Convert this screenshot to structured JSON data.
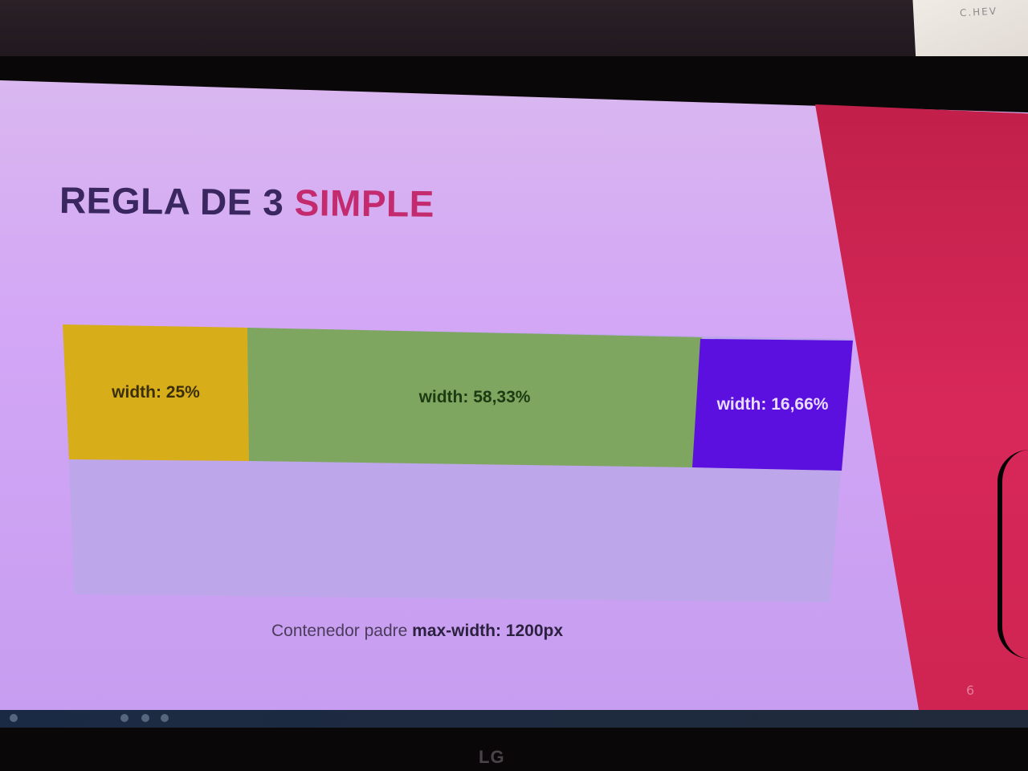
{
  "slide": {
    "title_main": "REGLA DE 3 ",
    "title_accent": "SIMPLE",
    "columns": [
      {
        "label": "width: 25%",
        "percent": 25,
        "color": "#d8ad1a"
      },
      {
        "label": "width: 58,33%",
        "percent": 58.33,
        "color": "#7ea660"
      },
      {
        "label": "width: 16,66%",
        "percent": 16.66,
        "color": "#5b10e0"
      }
    ],
    "caption_prefix": "Contenedor padre ",
    "caption_bold": "max-width: 1200px",
    "page_number": "6"
  },
  "monitor": {
    "brand": "LG"
  },
  "note": {
    "text": "C.HEV"
  },
  "colors": {
    "title_main": "#3a2760",
    "title_accent": "#c42a6e",
    "slide_bg": "#d3a6f6",
    "container_bg": "#bda7ea",
    "red_panel": "#d8285a"
  }
}
